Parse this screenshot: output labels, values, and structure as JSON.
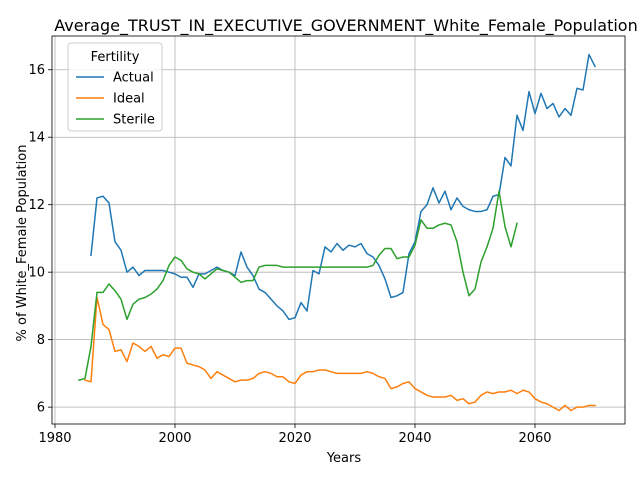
{
  "chart_data": {
    "type": "line",
    "title": "Average_TRUST_IN_EXECUTIVE_GOVERNMENT_White_Female_Population",
    "xlabel": "Years",
    "ylabel": "% of White_Female Population",
    "xlim": [
      1979.5,
      2075
    ],
    "ylim": [
      5.5,
      17.0
    ],
    "xticks": [
      1980,
      2000,
      2020,
      2040,
      2060
    ],
    "yticks": [
      6,
      8,
      10,
      12,
      14,
      16
    ],
    "xtick_labels": [
      "1980",
      "2000",
      "2020",
      "2040",
      "2060"
    ],
    "ytick_labels": [
      "6",
      "8",
      "10",
      "12",
      "14",
      "16"
    ],
    "grid": true,
    "legend": {
      "title": "Fertility",
      "position": "top-left"
    },
    "series": [
      {
        "name": "Actual",
        "color": "#1f77b4",
        "x": [
          1986,
          1987,
          1988,
          1989,
          1990,
          1991,
          1992,
          1993,
          1994,
          1995,
          1996,
          1997,
          1998,
          1999,
          2000,
          2001,
          2002,
          2003,
          2004,
          2005,
          2006,
          2007,
          2008,
          2009,
          2010,
          2011,
          2012,
          2013,
          2014,
          2015,
          2016,
          2017,
          2018,
          2019,
          2020,
          2021,
          2022,
          2023,
          2024,
          2025,
          2026,
          2027,
          2028,
          2029,
          2030,
          2031,
          2032,
          2033,
          2034,
          2035,
          2036,
          2037,
          2038,
          2039,
          2040,
          2041,
          2042,
          2043,
          2044,
          2045,
          2046,
          2047,
          2048,
          2049,
          2050,
          2051,
          2052,
          2053,
          2054,
          2055,
          2056,
          2057,
          2058,
          2059,
          2060,
          2061,
          2062,
          2063,
          2064,
          2065,
          2066,
          2067,
          2068,
          2069,
          2070
        ],
        "y": [
          10.5,
          12.2,
          12.25,
          12.05,
          10.9,
          10.65,
          10.0,
          10.15,
          9.9,
          10.05,
          10.05,
          10.05,
          10.05,
          10.0,
          9.95,
          9.85,
          9.85,
          9.55,
          9.95,
          9.95,
          10.05,
          10.15,
          10.05,
          10.0,
          9.9,
          10.6,
          10.15,
          9.9,
          9.5,
          9.4,
          9.2,
          9.0,
          8.85,
          8.6,
          8.65,
          9.1,
          8.85,
          10.05,
          9.95,
          10.75,
          10.6,
          10.85,
          10.65,
          10.8,
          10.75,
          10.85,
          10.55,
          10.45,
          10.2,
          9.8,
          9.25,
          9.3,
          9.4,
          10.55,
          10.9,
          11.8,
          12.0,
          12.5,
          12.05,
          12.4,
          11.85,
          12.2,
          11.95,
          11.85,
          11.8,
          11.8,
          11.85,
          12.25,
          12.3,
          13.4,
          13.15,
          14.65,
          14.2,
          15.35,
          14.7,
          15.3,
          14.85,
          15.0,
          14.6,
          14.85,
          14.65,
          15.45,
          15.4,
          16.45,
          16.1
        ]
      },
      {
        "name": "Ideal",
        "color": "#ff7f0e",
        "x": [
          1985,
          1986,
          1987,
          1988,
          1989,
          1990,
          1991,
          1992,
          1993,
          1994,
          1995,
          1996,
          1997,
          1998,
          1999,
          2000,
          2001,
          2002,
          2003,
          2004,
          2005,
          2006,
          2007,
          2008,
          2009,
          2010,
          2011,
          2012,
          2013,
          2014,
          2015,
          2016,
          2017,
          2018,
          2019,
          2020,
          2021,
          2022,
          2023,
          2024,
          2025,
          2026,
          2027,
          2028,
          2029,
          2030,
          2031,
          2032,
          2033,
          2034,
          2035,
          2036,
          2037,
          2038,
          2039,
          2040,
          2041,
          2042,
          2043,
          2044,
          2045,
          2046,
          2047,
          2048,
          2049,
          2050,
          2051,
          2052,
          2053,
          2054,
          2055,
          2056,
          2057,
          2058,
          2059,
          2060,
          2061,
          2062,
          2063,
          2064,
          2065,
          2066,
          2067,
          2068,
          2069,
          2070
        ],
        "y": [
          6.8,
          6.75,
          9.25,
          8.45,
          8.3,
          7.65,
          7.7,
          7.35,
          7.9,
          7.8,
          7.65,
          7.8,
          7.45,
          7.55,
          7.5,
          7.75,
          7.75,
          7.3,
          7.25,
          7.2,
          7.1,
          6.85,
          7.05,
          6.95,
          6.85,
          6.75,
          6.8,
          6.8,
          6.85,
          7.0,
          7.05,
          7.0,
          6.9,
          6.9,
          6.75,
          6.7,
          6.95,
          7.05,
          7.05,
          7.1,
          7.1,
          7.05,
          7.0,
          7.0,
          7.0,
          7.0,
          7.0,
          7.05,
          7.0,
          6.9,
          6.85,
          6.55,
          6.6,
          6.7,
          6.75,
          6.55,
          6.45,
          6.35,
          6.3,
          6.3,
          6.3,
          6.35,
          6.2,
          6.25,
          6.1,
          6.15,
          6.35,
          6.45,
          6.4,
          6.45,
          6.45,
          6.5,
          6.4,
          6.5,
          6.45,
          6.25,
          6.15,
          6.1,
          6.0,
          5.9,
          6.05,
          5.9,
          6.0,
          6.0,
          6.05,
          6.05
        ]
      },
      {
        "name": "Sterile",
        "color": "#2ca02c",
        "x": [
          1984,
          1985,
          1986,
          1987,
          1988,
          1989,
          1990,
          1991,
          1992,
          1993,
          1994,
          1995,
          1996,
          1997,
          1998,
          1999,
          2000,
          2001,
          2002,
          2003,
          2004,
          2005,
          2006,
          2007,
          2008,
          2009,
          2010,
          2011,
          2012,
          2013,
          2014,
          2015,
          2016,
          2017,
          2018,
          2019,
          2020,
          2021,
          2022,
          2023,
          2024,
          2025,
          2026,
          2027,
          2028,
          2029,
          2030,
          2031,
          2032,
          2033,
          2034,
          2035,
          2036,
          2037,
          2038,
          2039,
          2040,
          2041,
          2042,
          2043,
          2044,
          2045,
          2046,
          2047,
          2048,
          2049,
          2050,
          2051,
          2052,
          2053,
          2054,
          2055,
          2056,
          2057
        ],
        "y": [
          6.8,
          6.85,
          7.8,
          9.4,
          9.4,
          9.65,
          9.45,
          9.2,
          8.6,
          9.05,
          9.2,
          9.25,
          9.35,
          9.5,
          9.75,
          10.2,
          10.45,
          10.35,
          10.1,
          10.0,
          9.95,
          9.8,
          9.95,
          10.1,
          10.05,
          10.0,
          9.85,
          9.7,
          9.75,
          9.75,
          10.15,
          10.2,
          10.2,
          10.2,
          10.15,
          10.15,
          10.15,
          10.15,
          10.15,
          10.15,
          10.15,
          10.15,
          10.15,
          10.15,
          10.15,
          10.15,
          10.15,
          10.15,
          10.15,
          10.2,
          10.5,
          10.7,
          10.7,
          10.4,
          10.45,
          10.45,
          10.8,
          11.55,
          11.3,
          11.3,
          11.4,
          11.45,
          11.4,
          10.9,
          10.0,
          9.3,
          9.5,
          10.3,
          10.75,
          11.3,
          12.4,
          11.35,
          10.75,
          11.45
        ]
      }
    ]
  }
}
